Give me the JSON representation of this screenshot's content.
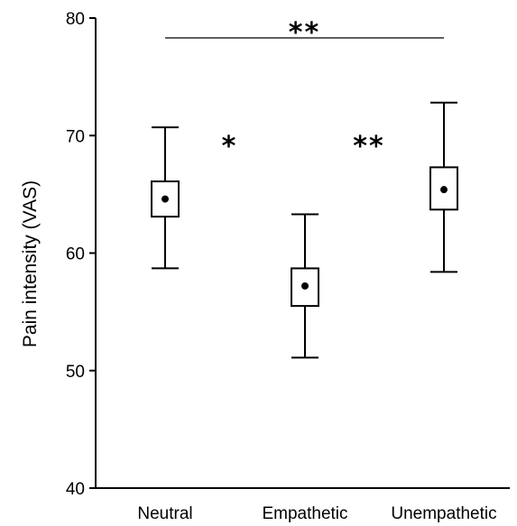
{
  "chart_data": {
    "type": "box",
    "ylabel": "Pain intensity (VAS)",
    "ylim": [
      40,
      80
    ],
    "yticks": [
      40,
      50,
      60,
      70,
      80
    ],
    "grid": false,
    "categories": [
      "Neutral",
      "Empathetic",
      "Unempathetic"
    ],
    "boxes": [
      {
        "category": "Neutral",
        "whisker_low": 58.7,
        "q1": 63.1,
        "mean": 64.6,
        "q3": 66.1,
        "whisker_high": 70.7
      },
      {
        "category": "Empathetic",
        "whisker_low": 51.1,
        "q1": 55.5,
        "mean": 57.2,
        "q3": 58.7,
        "whisker_high": 63.3
      },
      {
        "category": "Unempathetic",
        "whisker_low": 58.4,
        "q1": 63.7,
        "mean": 65.4,
        "q3": 67.3,
        "whisker_high": 72.8
      }
    ],
    "significance": [
      {
        "between": [
          "Neutral",
          "Unempathetic"
        ],
        "label": "**",
        "bracket": true
      },
      {
        "between": [
          "Neutral",
          "Empathetic"
        ],
        "label": "*",
        "bracket": false
      },
      {
        "between": [
          "Empathetic",
          "Unempathetic"
        ],
        "label": "**",
        "bracket": false
      }
    ],
    "colors": {
      "line": "#000000",
      "background": "#ffffff"
    }
  }
}
